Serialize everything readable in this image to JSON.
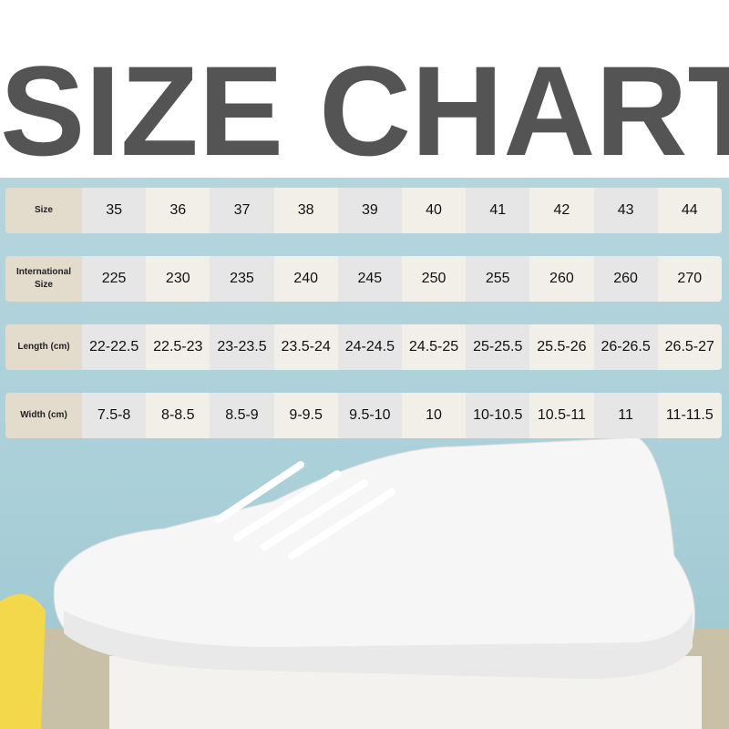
{
  "title": "SIZE CHART",
  "rows": [
    {
      "label": "Size",
      "values": [
        "35",
        "36",
        "37",
        "38",
        "39",
        "40",
        "41",
        "42",
        "43",
        "44"
      ]
    },
    {
      "label": "International Size",
      "values": [
        "225",
        "230",
        "235",
        "240",
        "245",
        "250",
        "255",
        "260",
        "260",
        "270"
      ]
    },
    {
      "label": "Length (cm)",
      "values": [
        "22-22.5",
        "22.5-23",
        "23-23.5",
        "23.5-24",
        "24-24.5",
        "24.5-25",
        "25-25.5",
        "25.5-26",
        "26-26.5",
        "26.5-27"
      ]
    },
    {
      "label": "Width (cm)",
      "values": [
        "7.5-8",
        "8-8.5",
        "8.5-9",
        "9-9.5",
        "9.5-10",
        "10",
        "10-10.5",
        "10.5-11",
        "11",
        "11-11.5"
      ]
    }
  ],
  "colors": {
    "background": "#b5d5dd",
    "title": "#545454",
    "label_cell": "#e3dccd",
    "cell_a": "#e6e6e6",
    "cell_b": "#f2eee8"
  }
}
